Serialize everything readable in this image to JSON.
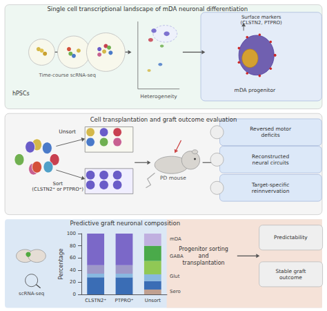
{
  "chart_data": {
    "type": "bar",
    "stacked": true,
    "title": "Predictive graft neuronal composition",
    "categories": [
      "CLSTN2⁺",
      "PTPRO⁺",
      "Unsort"
    ],
    "ylabel": "Percentage",
    "ylim": [
      0,
      100
    ],
    "yticks": [
      0,
      20,
      40,
      60,
      80,
      100
    ],
    "grid": false,
    "series": [
      {
        "values": [
          28,
          28,
          8
        ],
        "colors": [
          "#3a6db5",
          "#3a6db5",
          "#c0a090"
        ]
      },
      {
        "values": [
          6,
          6,
          14
        ],
        "colors": [
          "#88b8e0",
          "#88b8e0",
          "#3a6db5"
        ]
      },
      {
        "values": [
          14,
          14,
          11
        ],
        "colors": [
          "#9e98c8",
          "#9e98c8",
          "#88b8e0"
        ]
      },
      {
        "values": [
          52,
          52,
          22
        ],
        "colors": [
          "#7b68c8",
          "#7b68c8",
          "#90c855"
        ]
      },
      {
        "values": [
          null,
          null,
          25
        ],
        "colors": [
          null,
          null,
          "#4aaa4a"
        ]
      },
      {
        "values": [
          null,
          null,
          20
        ],
        "colors": [
          null,
          null,
          "#c0b0e0"
        ]
      }
    ],
    "annotations": [
      {
        "text": "Single cell transcriptional landscape of mDA neuronal differentiation"
      },
      {
        "text": "hPSCs"
      },
      {
        "text": "Time-course scRNA-seq"
      },
      {
        "text": "Heterogeneity"
      },
      {
        "text": "Surface markers\n(CLSTN2, PTPRO)"
      },
      {
        "text": "mDA progenitor"
      },
      {
        "text": "Cell transplantation and graft outcome evaluation"
      },
      {
        "text": "Unsort"
      },
      {
        "text": "Sort\n(CLSTN2⁺ or PTPRO⁺)"
      },
      {
        "text": "PD mouse"
      },
      {
        "text": "Reversed motor\ndeficits"
      },
      {
        "text": "Reconstructed\nneural circuits"
      },
      {
        "text": "Target-specific\nreinnvervation"
      },
      {
        "text": "scRNA-seq"
      },
      {
        "text": "Progenitor sorting\nand\ntransplantation"
      },
      {
        "text": "Predictability"
      },
      {
        "text": "Stable graft\noutcome"
      },
      {
        "text": "mDA",
        "y": 91
      },
      {
        "text": "GABA",
        "y": 63
      },
      {
        "text": "Glut",
        "y": 30
      },
      {
        "text": "Sero",
        "y": 4
      }
    ]
  }
}
